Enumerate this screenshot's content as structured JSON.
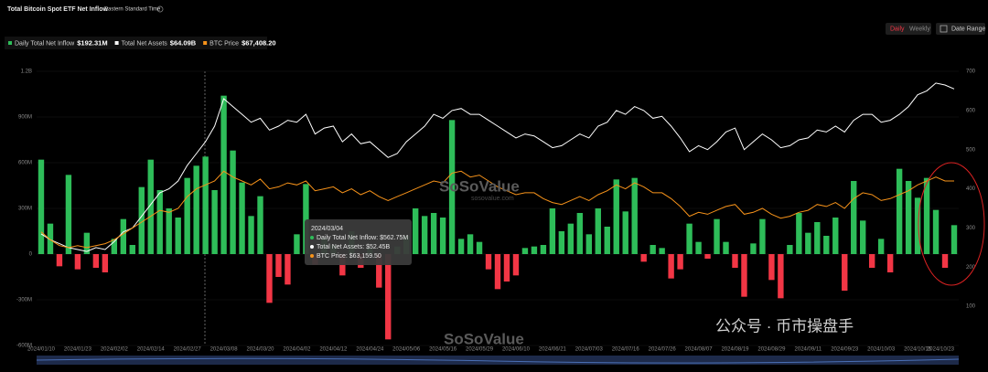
{
  "chart_data": {
    "type": "bar",
    "title": "Total Bitcoin Spot ETF Net Inflow",
    "subtitle": "Eastern Standard Time",
    "buttons": [
      "Daily",
      "Weekly",
      "Date Range"
    ],
    "categories": [
      "2024/01/10",
      null,
      null,
      null,
      "2024/01/23",
      null,
      null,
      null,
      "2024/02/02",
      null,
      null,
      null,
      "2024/02/14",
      null,
      null,
      null,
      "2024/02/27",
      null,
      null,
      null,
      "2024/03/08",
      null,
      null,
      null,
      "2024/03/20",
      null,
      null,
      null,
      "2024/04/02",
      null,
      null,
      null,
      "2024/04/12",
      null,
      null,
      null,
      "2024/04/24",
      null,
      null,
      null,
      "2024/05/06",
      null,
      null,
      null,
      "2024/05/16",
      null,
      null,
      null,
      "2024/05/29",
      null,
      null,
      null,
      "2024/06/10",
      null,
      null,
      null,
      "2024/06/21",
      null,
      null,
      null,
      "2024/07/03",
      null,
      null,
      null,
      "2024/07/16",
      null,
      null,
      null,
      "2024/07/26",
      null,
      null,
      null,
      "2024/08/07",
      null,
      null,
      null,
      "2024/08/19",
      null,
      null,
      null,
      "2024/08/29",
      null,
      null,
      null,
      "2024/09/11",
      null,
      null,
      null,
      "2024/09/23",
      null,
      null,
      null,
      "2024/10/03",
      null,
      null,
      null,
      "2024/10/15",
      null,
      null,
      null,
      "2024/10/23"
    ],
    "series": [
      {
        "name": "Daily Total Net Inflow",
        "value_label": "$192.31M",
        "color": "#2ebd59",
        "negative_color": "#f23645",
        "axis": "y",
        "values": [
          620,
          200,
          -80,
          520,
          -100,
          140,
          -90,
          -120,
          100,
          230,
          60,
          440,
          620,
          420,
          300,
          240,
          500,
          580,
          640,
          420,
          1040,
          680,
          470,
          250,
          380,
          -320,
          -150,
          -200,
          130,
          460,
          -70,
          110,
          60,
          -140,
          150,
          -90,
          40,
          -220,
          -560,
          50,
          120,
          300,
          250,
          270,
          240,
          880,
          100,
          130,
          80,
          -100,
          -230,
          -180,
          -140,
          40,
          50,
          60,
          300,
          150,
          200,
          270,
          130,
          300,
          180,
          490,
          280,
          500,
          -50,
          60,
          40,
          -160,
          -100,
          200,
          80,
          -30,
          230,
          80,
          -90,
          -280,
          70,
          230,
          -170,
          -290,
          60,
          270,
          140,
          210,
          120,
          240,
          -240,
          480,
          220,
          -90,
          100,
          -120,
          560,
          480,
          370,
          500,
          290,
          -90,
          190
        ]
      },
      {
        "name": "Total Net Assets",
        "value_label": "$64.09B",
        "color": "#ffffff",
        "axis": "y2",
        "values": [
          285,
          270,
          260,
          250,
          245,
          240,
          250,
          245,
          265,
          290,
          300,
          330,
          360,
          390,
          400,
          420,
          460,
          490,
          520,
          560,
          630,
          610,
          590,
          570,
          580,
          550,
          560,
          575,
          570,
          590,
          540,
          555,
          560,
          520,
          540,
          515,
          520,
          500,
          480,
          490,
          520,
          540,
          560,
          590,
          580,
          600,
          605,
          590,
          590,
          575,
          560,
          545,
          530,
          540,
          535,
          520,
          505,
          510,
          525,
          540,
          530,
          560,
          570,
          600,
          590,
          610,
          600,
          580,
          585,
          560,
          530,
          495,
          510,
          500,
          520,
          545,
          555,
          500,
          520,
          540,
          525,
          505,
          510,
          525,
          530,
          550,
          545,
          560,
          545,
          575,
          590,
          590,
          570,
          575,
          590,
          610,
          640,
          650,
          670,
          665,
          655
        ]
      },
      {
        "name": "BTC Price",
        "value_label": "$67,408.20",
        "color": "#f7931a",
        "axis": "y2",
        "values": [
          290,
          270,
          255,
          250,
          255,
          250,
          255,
          260,
          270,
          285,
          300,
          315,
          330,
          345,
          340,
          350,
          380,
          400,
          410,
          420,
          445,
          430,
          420,
          410,
          425,
          400,
          405,
          415,
          410,
          420,
          395,
          400,
          405,
          390,
          400,
          385,
          395,
          380,
          370,
          380,
          390,
          400,
          410,
          420,
          415,
          440,
          445,
          430,
          435,
          420,
          405,
          395,
          385,
          390,
          390,
          375,
          365,
          360,
          370,
          380,
          370,
          385,
          395,
          410,
          400,
          415,
          405,
          390,
          390,
          375,
          355,
          330,
          340,
          335,
          345,
          355,
          360,
          335,
          340,
          350,
          335,
          325,
          330,
          340,
          345,
          360,
          355,
          365,
          350,
          375,
          390,
          385,
          370,
          375,
          385,
          395,
          410,
          420,
          430,
          420,
          420
        ]
      }
    ],
    "ylim": [
      -600,
      1200
    ],
    "yticks": [
      {
        "value": -600,
        "label": "-600M"
      },
      {
        "value": -300,
        "label": "-300M"
      },
      0,
      {
        "value": 300,
        "label": "300M"
      },
      {
        "value": 600,
        "label": "600M"
      },
      {
        "value": 900,
        "label": "900M"
      },
      {
        "value": 1200,
        "label": "1.2B"
      }
    ],
    "y2lim": [
      0,
      700
    ],
    "y2ticks": [
      100,
      200,
      300,
      400,
      500,
      600,
      700
    ],
    "grid": true,
    "tooltip": {
      "date": "2024/03/04",
      "lines": [
        "Daily Total Net Inflow: $562.75M",
        "Total Net Assets: $52.45B",
        "BTC Price: $63,159.50"
      ]
    },
    "watermark": [
      "SoSoValue",
      "sosovalue.com",
      "公众号 · 币市操盘手"
    ]
  }
}
